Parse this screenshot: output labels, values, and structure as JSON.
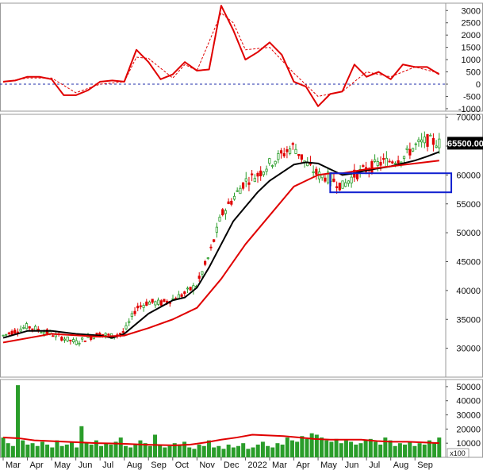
{
  "chart_data": [
    {
      "type": "line",
      "panel": "macd",
      "ylim": [
        -1100,
        3300
      ],
      "y_ticks": [
        "3000",
        "2500",
        "2000",
        "1500",
        "1000",
        "500",
        "0",
        "-500",
        "-1000"
      ],
      "reference_line": 0,
      "series": [
        {
          "color": "#e00000",
          "style": "solid",
          "x": [
            0,
            0.5,
            1,
            1.5,
            2,
            2.5,
            3,
            3.5,
            4,
            4.5,
            5,
            5.5,
            6,
            6.5,
            7,
            7.5,
            8,
            8.5,
            9,
            9.5,
            10,
            10.5,
            11,
            11.5,
            12,
            12.5,
            13,
            13.5,
            14,
            14.5,
            15,
            15.5,
            16,
            16.5,
            17,
            17.5,
            18
          ],
          "y": [
            100,
            150,
            300,
            300,
            200,
            -450,
            -450,
            -250,
            100,
            150,
            100,
            1400,
            900,
            200,
            400,
            900,
            550,
            600,
            3200,
            2200,
            1000,
            1300,
            1700,
            1200,
            100,
            -100,
            -900,
            -400,
            -300,
            800,
            300,
            500,
            200,
            800,
            700,
            700,
            400
          ]
        },
        {
          "color": "#e00000",
          "style": "dashed",
          "x": [
            0,
            1,
            2,
            3,
            4,
            5,
            5.5,
            6,
            7,
            7.5,
            8,
            9,
            9.5,
            10,
            11,
            12,
            13,
            14,
            15,
            16,
            17,
            18
          ],
          "y": [
            80,
            250,
            250,
            -350,
            0,
            100,
            1100,
            1050,
            250,
            800,
            550,
            2900,
            2500,
            1400,
            1500,
            450,
            -500,
            -300,
            500,
            300,
            700,
            450
          ]
        }
      ]
    },
    {
      "type": "line",
      "panel": "price",
      "ylim": [
        25000,
        70500
      ],
      "y_ticks": [
        "70000",
        "65000",
        "60000",
        "55000",
        "50000",
        "45000",
        "40000",
        "35000",
        "30000"
      ],
      "last_price_label": "65500.00",
      "support_zone": {
        "x": [
          13.5,
          18.5
        ],
        "y": [
          57000,
          60300
        ]
      },
      "series": [
        {
          "color": "#2a9d2a",
          "style": "solid",
          "x": [
            0,
            1,
            2,
            3,
            3.5,
            4,
            4.5,
            5,
            5.5,
            6,
            6.5,
            7,
            7.5,
            8,
            8.5,
            8.8,
            9,
            9.5,
            10,
            10.5,
            11,
            11.5,
            12,
            12.5,
            13,
            13.5,
            14,
            14.5,
            15,
            15.5,
            16,
            16.5,
            17,
            17.5,
            18
          ],
          "y": [
            32200,
            33800,
            32500,
            31000,
            31800,
            32500,
            32100,
            32800,
            37000,
            38000,
            37800,
            38500,
            39500,
            41000,
            46000,
            50000,
            53000,
            56000,
            59000,
            60000,
            62000,
            63500,
            65000,
            62000,
            60000,
            59500,
            58000,
            60000,
            61000,
            62000,
            62500,
            63000,
            65000,
            66000,
            65500
          ]
        },
        {
          "color": "#000000",
          "style": "solid",
          "x": [
            0,
            1,
            2,
            3,
            4,
            4.5,
            5,
            6,
            7,
            7.5,
            8,
            8.5,
            9,
            9.5,
            10,
            10.5,
            11,
            12,
            12.5,
            13,
            13.5,
            14,
            14.5,
            15,
            16,
            16.5,
            17,
            17.5,
            18
          ],
          "y": [
            31800,
            33000,
            33000,
            32500,
            32200,
            31800,
            32500,
            36000,
            38300,
            38800,
            40500,
            44000,
            48000,
            52000,
            54500,
            57000,
            59000,
            61800,
            62200,
            62000,
            61000,
            60000,
            60300,
            60800,
            61500,
            62000,
            62500,
            63200,
            64000
          ]
        },
        {
          "color": "#e00000",
          "style": "solid",
          "x": [
            0,
            2,
            4,
            4.5,
            5,
            6,
            7,
            8,
            9,
            10,
            11,
            12,
            12.5,
            13,
            13.5,
            14,
            15,
            16,
            17,
            18
          ],
          "y": [
            31000,
            32500,
            32000,
            32100,
            32200,
            33500,
            35000,
            37000,
            42000,
            48000,
            53000,
            58000,
            59000,
            60000,
            60300,
            60300,
            61000,
            61500,
            62000,
            62500
          ]
        }
      ]
    },
    {
      "type": "bar",
      "panel": "volume",
      "ylim": [
        0,
        55000
      ],
      "y_ticks": [
        "50000",
        "40000",
        "30000",
        "20000",
        "10000"
      ],
      "unit_label": "x100",
      "color": "#2a9d2a",
      "bars": [
        14000,
        10000,
        8000,
        51000,
        12000,
        9000,
        10000,
        8000,
        11000,
        9000,
        7000,
        12000,
        8000,
        9000,
        11000,
        7000,
        22000,
        10000,
        9000,
        12000,
        8000,
        10000,
        9000,
        11000,
        14000,
        8000,
        7000,
        9000,
        12000,
        10000,
        8000,
        16000,
        9000,
        7000,
        8000,
        10000,
        9000,
        11000,
        7000,
        6000,
        9000,
        8000,
        12000,
        7000,
        8000,
        6000,
        9000,
        7000,
        8000,
        10000,
        6000,
        7000,
        9000,
        11000,
        8000,
        7000,
        10000,
        9000,
        14000,
        12000,
        11000,
        15000,
        13000,
        17000,
        16000,
        14000,
        12000,
        11000,
        13000,
        10000,
        12000,
        11000,
        9000,
        10000,
        12000,
        13000,
        11000,
        9000,
        14000,
        12000,
        8000,
        10000,
        9000,
        11000,
        8000,
        10000,
        9000,
        12000,
        10000,
        14000
      ],
      "ma": {
        "color": "#e00000",
        "values": [
          14000,
          13500,
          12000,
          11500,
          11000,
          10500,
          10000,
          9800,
          9500,
          9000,
          8700,
          8500,
          9000,
          10500,
          12500,
          14000,
          16000,
          15500,
          15000,
          14000,
          13000,
          12500,
          12500,
          12500,
          11500,
          11000,
          11000,
          10500,
          10000
        ]
      }
    }
  ],
  "x_axis": {
    "labels": [
      "Mar",
      "Apr",
      "May",
      "Jun",
      "Jul",
      "Aug",
      "Sep",
      "Oct",
      "Nov",
      "Dec",
      "2022",
      "Mar",
      "Apr",
      "May",
      "Jun",
      "Jul",
      "Aug",
      "Sep"
    ]
  },
  "colors": {
    "up": "#2a9d2a",
    "down": "#e00000",
    "ma_black": "#000000",
    "ma_red": "#e00000",
    "zero_line": "#1f2ca8",
    "support_box": "#1020d0"
  }
}
